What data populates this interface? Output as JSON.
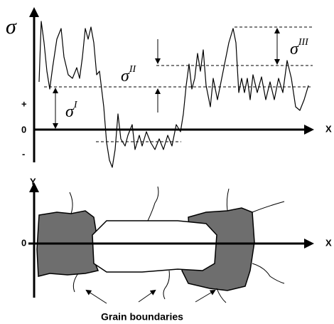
{
  "top": {
    "sigma": "σ",
    "plus": "+",
    "zero": "0",
    "minus": "-",
    "x_axis": "X",
    "sigma_1": {
      "base": "σ",
      "sup": "I"
    },
    "sigma_2": {
      "base": "σ",
      "sup": "II"
    },
    "sigma_3": {
      "base": "σ",
      "sup": "III"
    }
  },
  "bottom": {
    "y_axis": "Y",
    "zero": "0",
    "x_axis": "X",
    "caption": "Grain boundaries"
  }
}
